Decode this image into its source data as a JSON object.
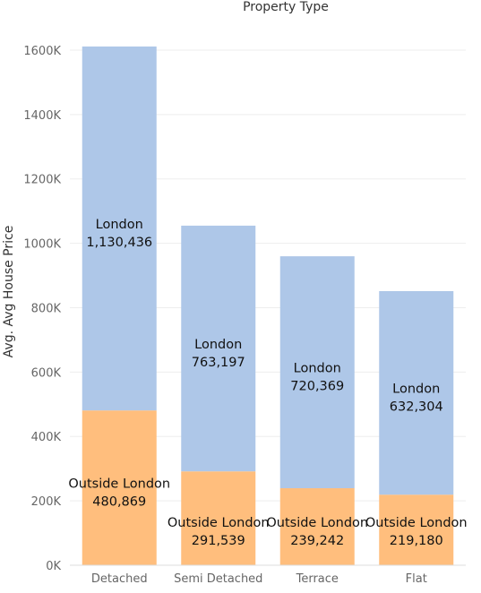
{
  "chart_data": {
    "type": "bar",
    "stacked": true,
    "title": "Property Type",
    "ylabel": "Avg. Avg House Price",
    "categories": [
      "Detached",
      "Semi Detached",
      "Terrace",
      "Flat"
    ],
    "series": [
      {
        "name": "Outside London",
        "color": "#FFBE7D",
        "values": [
          480869,
          291539,
          239242,
          219180
        ],
        "labels": [
          "480,869",
          "291,539",
          "239,242",
          "219,180"
        ]
      },
      {
        "name": "London",
        "color": "#AEC7E8",
        "values": [
          1130436,
          763197,
          720369,
          632304
        ],
        "labels": [
          "1,130,436",
          "763,197",
          "720,369",
          "632,304"
        ]
      }
    ],
    "ylim": [
      0,
      1700000
    ],
    "yticks": [
      0,
      200000,
      400000,
      600000,
      800000,
      1000000,
      1200000,
      1400000,
      1600000
    ],
    "ytick_labels": [
      "0K",
      "200K",
      "400K",
      "600K",
      "800K",
      "1000K",
      "1200K",
      "1400K",
      "1600K"
    ],
    "grid": true,
    "legend": "none"
  }
}
